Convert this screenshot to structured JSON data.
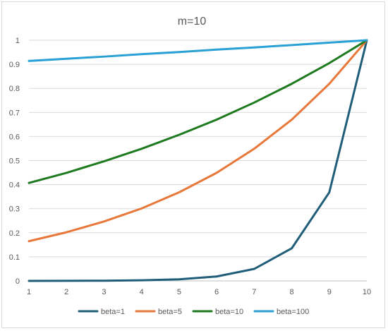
{
  "chart_data": {
    "type": "line",
    "title": "m=10",
    "xlabel": "",
    "ylabel": "",
    "x": [
      1,
      2,
      3,
      4,
      5,
      6,
      7,
      8,
      9,
      10
    ],
    "x_ticks": [
      "1",
      "2",
      "3",
      "4",
      "5",
      "6",
      "7",
      "8",
      "9",
      "10"
    ],
    "ylim": [
      0,
      1
    ],
    "y_ticks": [
      "0",
      "0.1",
      "0.2",
      "0.3",
      "0.4",
      "0.5",
      "0.6",
      "0.7",
      "0.8",
      "0.9",
      "1"
    ],
    "grid": true,
    "legend": "bottom",
    "series": [
      {
        "name": "beta=1",
        "color": "#1f5d78",
        "values": [
          0.0001,
          0.0003,
          0.0009,
          0.0025,
          0.0067,
          0.0183,
          0.0498,
          0.1353,
          0.3679,
          1.0
        ]
      },
      {
        "name": "beta=5",
        "color": "#e8773a",
        "values": [
          0.165,
          0.202,
          0.247,
          0.301,
          0.368,
          0.449,
          0.549,
          0.67,
          0.819,
          1.0
        ]
      },
      {
        "name": "beta=10",
        "color": "#1e7a1e",
        "values": [
          0.407,
          0.449,
          0.497,
          0.549,
          0.607,
          0.67,
          0.741,
          0.819,
          0.905,
          1.0
        ]
      },
      {
        "name": "beta=100",
        "color": "#2aa0d4",
        "values": [
          0.914,
          0.923,
          0.932,
          0.942,
          0.951,
          0.961,
          0.97,
          0.98,
          0.99,
          1.0
        ]
      }
    ]
  }
}
